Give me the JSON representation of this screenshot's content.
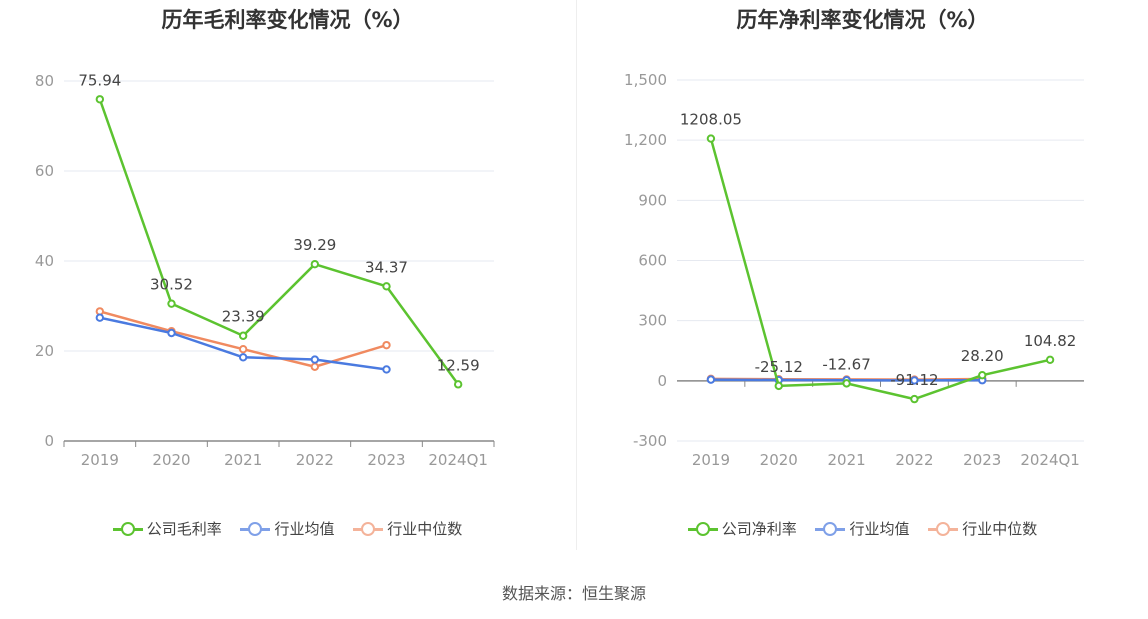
{
  "colors": {
    "company": "#5cc330",
    "avg": "#4a7ae0",
    "median": "#f08a60",
    "grid": "#e6e9f0",
    "axis": "#999999"
  },
  "chart_data": [
    {
      "type": "line",
      "title": "历年毛利率变化情况（%）",
      "categories": [
        "2019",
        "2020",
        "2021",
        "2022",
        "2023",
        "2024Q1"
      ],
      "ylim": [
        0,
        80
      ],
      "yticks": [
        0,
        20,
        40,
        60,
        80
      ],
      "ytick_labels": [
        "0",
        "20",
        "40",
        "60",
        "80"
      ],
      "grid": true,
      "legend_position": "bottom",
      "series": [
        {
          "name": "公司毛利率",
          "color": "#5cc330",
          "values": [
            75.94,
            30.52,
            23.39,
            39.29,
            34.37,
            12.59
          ],
          "labels": [
            "75.94",
            "30.52",
            "23.39",
            "39.29",
            "34.37",
            "12.59"
          ]
        },
        {
          "name": "行业均值",
          "color": "#4a7ae0",
          "values": [
            27.4,
            24.0,
            18.6,
            18.1,
            15.9,
            null
          ]
        },
        {
          "name": "行业中位数",
          "color": "#f08a60",
          "values": [
            28.8,
            24.4,
            20.4,
            16.5,
            21.3,
            null
          ]
        }
      ]
    },
    {
      "type": "line",
      "title": "历年净利率变化情况（%）",
      "categories": [
        "2019",
        "2020",
        "2021",
        "2022",
        "2023",
        "2024Q1"
      ],
      "ylim": [
        -300,
        1500
      ],
      "yticks": [
        -300,
        0,
        300,
        600,
        900,
        1200,
        1500
      ],
      "ytick_labels": [
        "-300",
        "0",
        "300",
        "600",
        "900",
        "1,200",
        "1,500"
      ],
      "grid": true,
      "legend_position": "bottom",
      "series": [
        {
          "name": "公司净利率",
          "color": "#5cc330",
          "values": [
            1208.05,
            -25.12,
            -12.67,
            -91.12,
            28.2,
            104.82
          ],
          "labels": [
            "1208.05",
            "-25.12",
            "-12.67",
            "-91.12",
            "28.20",
            "104.82"
          ]
        },
        {
          "name": "行业均值",
          "color": "#4a7ae0",
          "values": [
            6,
            4,
            3,
            2,
            3,
            null
          ]
        },
        {
          "name": "行业中位数",
          "color": "#f08a60",
          "values": [
            10,
            8,
            7,
            6,
            9,
            null
          ]
        }
      ]
    }
  ],
  "legends": [
    [
      {
        "label": "公司毛利率"
      },
      {
        "label": "行业均值"
      },
      {
        "label": "行业中位数"
      }
    ],
    [
      {
        "label": "公司净利率"
      },
      {
        "label": "行业均值"
      },
      {
        "label": "行业中位数"
      }
    ]
  ],
  "source": "数据来源：恒生聚源"
}
